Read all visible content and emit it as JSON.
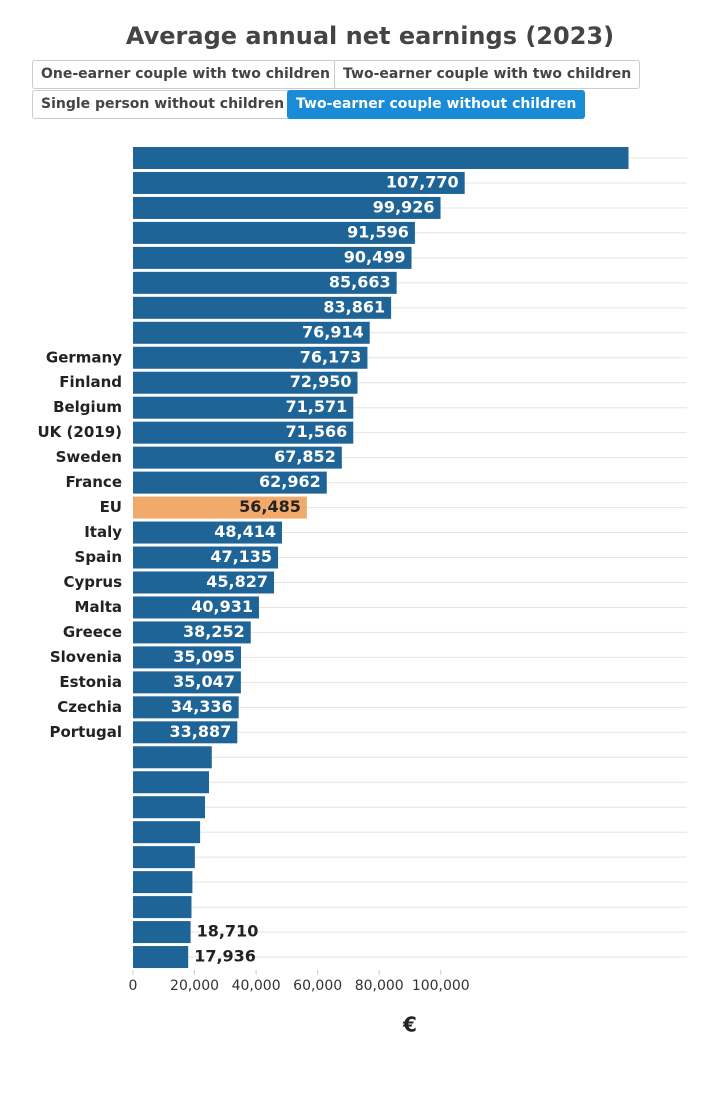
{
  "buttons": [
    {
      "label": "One-earner couple with two children",
      "active": false
    },
    {
      "label": "Two-earner couple with two children",
      "active": false
    },
    {
      "label": "Single person without children",
      "active": false
    },
    {
      "label": "Two-earner couple without children",
      "active": true
    }
  ],
  "chart_data": {
    "type": "barh",
    "title": "Average annual net earnings (2023)",
    "x_label": "€",
    "categories": [
      null,
      null,
      null,
      null,
      null,
      null,
      null,
      null,
      "Germany",
      "Finland",
      "Belgium",
      "UK (2019)",
      "Sweden",
      "France",
      "EU",
      "Italy",
      "Spain",
      "Cyprus",
      "Malta",
      "Greece",
      "Slovenia",
      "Estonia",
      "Czechia",
      "Portugal",
      null,
      null,
      null,
      null,
      null,
      null,
      null,
      null,
      null
    ],
    "values": [
      161000,
      107770,
      99926,
      91596,
      90499,
      85663,
      83861,
      76914,
      76173,
      72950,
      71571,
      71566,
      67852,
      62962,
      56485,
      48414,
      47135,
      45827,
      40931,
      38252,
      35095,
      35047,
      34336,
      33887,
      25600,
      24700,
      23400,
      21800,
      20100,
      19300,
      19000,
      18710,
      17936
    ],
    "value_labels": [
      null,
      "107,770",
      "99,926",
      "91,596",
      "90,499",
      "85,663",
      "83,861",
      "76,914",
      "76,173",
      "72,950",
      "71,571",
      "71,566",
      "67,852",
      "62,962",
      "56,485",
      "48,414",
      "47,135",
      "45,827",
      "40,931",
      "38,252",
      "35,095",
      "35,047",
      "34,336",
      "33,887",
      null,
      null,
      null,
      null,
      null,
      null,
      null,
      "18,710",
      "17,936"
    ],
    "color": "#1f6497",
    "highlight_color": "#f2aa6c",
    "highlight_index": 14,
    "xlim": [
      0,
      180000
    ],
    "xticks": [
      0,
      {
        "value": 20000,
        "label": "20,000"
      },
      {
        "value": 40000,
        "label": "40,000"
      },
      {
        "value": 60000,
        "label": "60,000"
      },
      {
        "value": 80000,
        "label": "80,000"
      },
      {
        "value": 100000,
        "label": "100,000"
      }
    ]
  }
}
